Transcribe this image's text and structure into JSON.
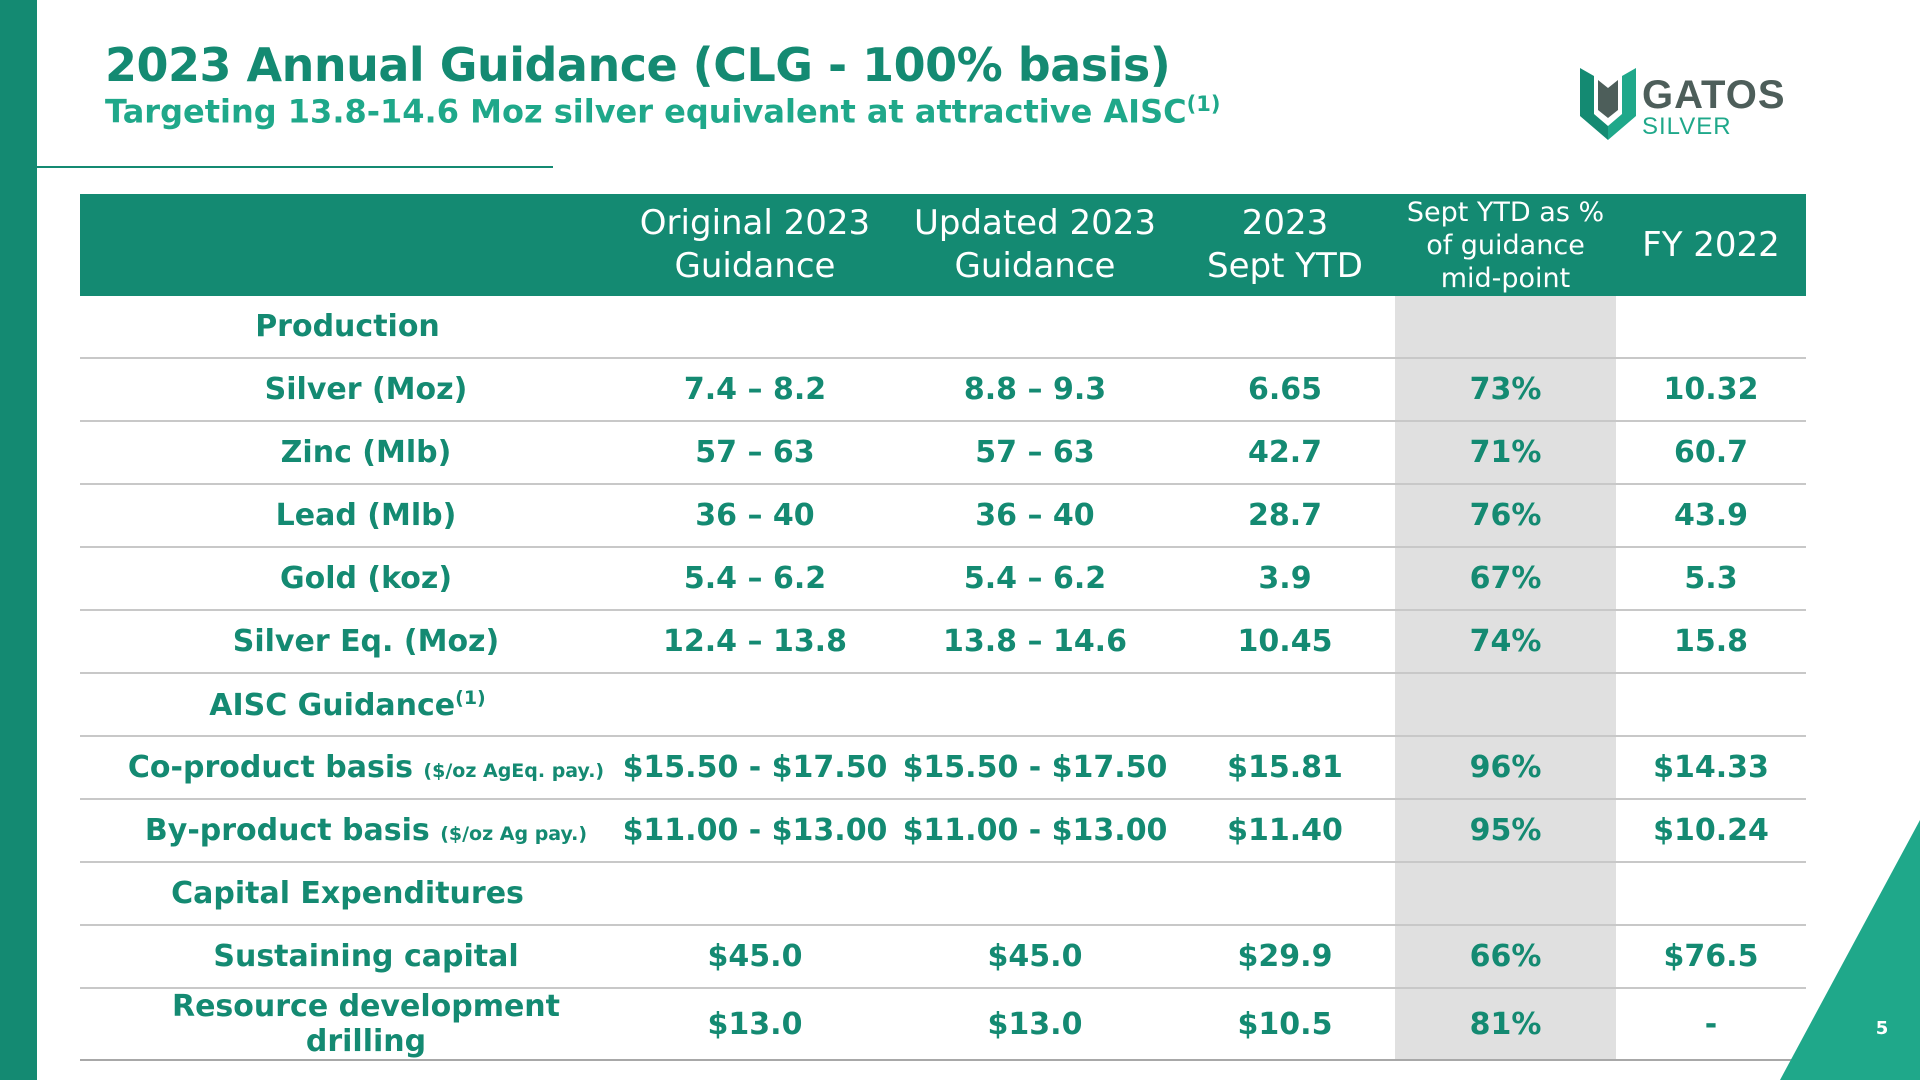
{
  "title": "2023 Annual Guidance (CLG - 100% basis)",
  "subtitle": {
    "text": "Targeting 13.8-14.6 Moz silver equivalent at attractive AISC",
    "footnote": "(1)"
  },
  "logo": {
    "line1": "GATOS",
    "line2": "SILVER"
  },
  "table": {
    "headers": {
      "original": [
        "Original 2023",
        "Guidance"
      ],
      "updated": [
        "Updated 2023",
        "Guidance"
      ],
      "ytd": [
        "2023",
        "Sept YTD"
      ],
      "pct": [
        "Sept YTD as %",
        "of guidance",
        "mid-point"
      ],
      "fy": "FY 2022"
    },
    "rows": [
      {
        "label": "Production"
      },
      {
        "label": "Silver (Moz)",
        "original": "7.4 – 8.2",
        "updated": "8.8 – 9.3",
        "ytd": "6.65",
        "pct": "73%",
        "fy": "10.32"
      },
      {
        "label": "Zinc (Mlb)",
        "original": "57 – 63",
        "updated": "57 – 63",
        "ytd": "42.7",
        "pct": "71%",
        "fy": "60.7"
      },
      {
        "label": "Lead (Mlb)",
        "original": "36 – 40",
        "updated": "36 – 40",
        "ytd": "28.7",
        "pct": "76%",
        "fy": "43.9"
      },
      {
        "label": "Gold (koz)",
        "original": "5.4 – 6.2",
        "updated": "5.4 – 6.2",
        "ytd": "3.9",
        "pct": "67%",
        "fy": "5.3"
      },
      {
        "label": "Silver Eq. (Moz)",
        "original": "12.4 – 13.8",
        "updated": "13.8 – 14.6",
        "ytd": "10.45",
        "pct": "74%",
        "fy": "15.8"
      },
      {
        "label": "AISC Guidance",
        "footnote": "(1)"
      },
      {
        "label": "Co-product basis",
        "unit": "($/oz AgEq. pay.)",
        "original": "$15.50 - $17.50",
        "updated": "$15.50 - $17.50",
        "ytd": "$15.81",
        "pct": "96%",
        "fy": "$14.33"
      },
      {
        "label": "By-product basis",
        "unit": "($/oz Ag pay.)",
        "original": "$11.00 - $13.00",
        "updated": "$11.00 - $13.00",
        "ytd": "$11.40",
        "pct": "95%",
        "fy": "$10.24"
      },
      {
        "label": "Capital Expenditures"
      },
      {
        "label": "Sustaining capital",
        "original": "$45.0",
        "updated": "$45.0",
        "ytd": "$29.9",
        "pct": "66%",
        "fy": "$76.5"
      },
      {
        "label": "Resource development drilling",
        "original": "$13.0",
        "updated": "$13.0",
        "ytd": "$10.5",
        "pct": "81%",
        "fy": "-"
      }
    ]
  },
  "page_number": "5",
  "colors": {
    "brand_green": "#148a72",
    "accent_green": "#1fa88a",
    "muted_gray": "#a9a9a9",
    "highlight_column": "#e0e0e0",
    "logo_dark": "#4d5e5a"
  }
}
